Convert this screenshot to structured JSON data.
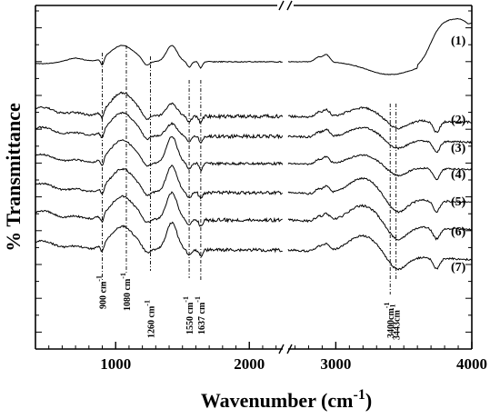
{
  "chart_data": {
    "type": "line",
    "xlabel": "Wavenumber (cm",
    "xlabel_sup": "-1",
    "xlabel_close": ")",
    "ylabel": "% Transmittance",
    "xlim": [
      400,
      4000
    ],
    "axis_break": [
      2250,
      2650
    ],
    "x_ticks": [
      {
        "value": 1000,
        "label": "1000"
      },
      {
        "value": 2000,
        "label": "2000"
      },
      {
        "value": 3000,
        "label": "3000"
      },
      {
        "value": 4000,
        "label": "4000"
      }
    ],
    "y_ticks": "unlabeled",
    "grid": false,
    "legend": "inline labels on right",
    "series_labels": [
      "(1)",
      "(2)",
      "(3)",
      "(4)",
      "(5)",
      "(6)",
      "(7)"
    ],
    "marker_lines": [
      {
        "x": 900,
        "label": "900 cm",
        "sup": "-1"
      },
      {
        "x": 1080,
        "label": "1080 cm",
        "sup": "-1"
      },
      {
        "x": 1260,
        "label": "1260 cm",
        "sup": "-1"
      },
      {
        "x": 1550,
        "label": "1550 cm",
        "sup": "-1"
      },
      {
        "x": 1637,
        "label": "1637 cm",
        "sup": "-1"
      },
      {
        "x": 3400,
        "label": "3400cm",
        "sup": "-1"
      },
      {
        "x": 3443,
        "label": "3443cm",
        "sup": "-1"
      }
    ]
  }
}
